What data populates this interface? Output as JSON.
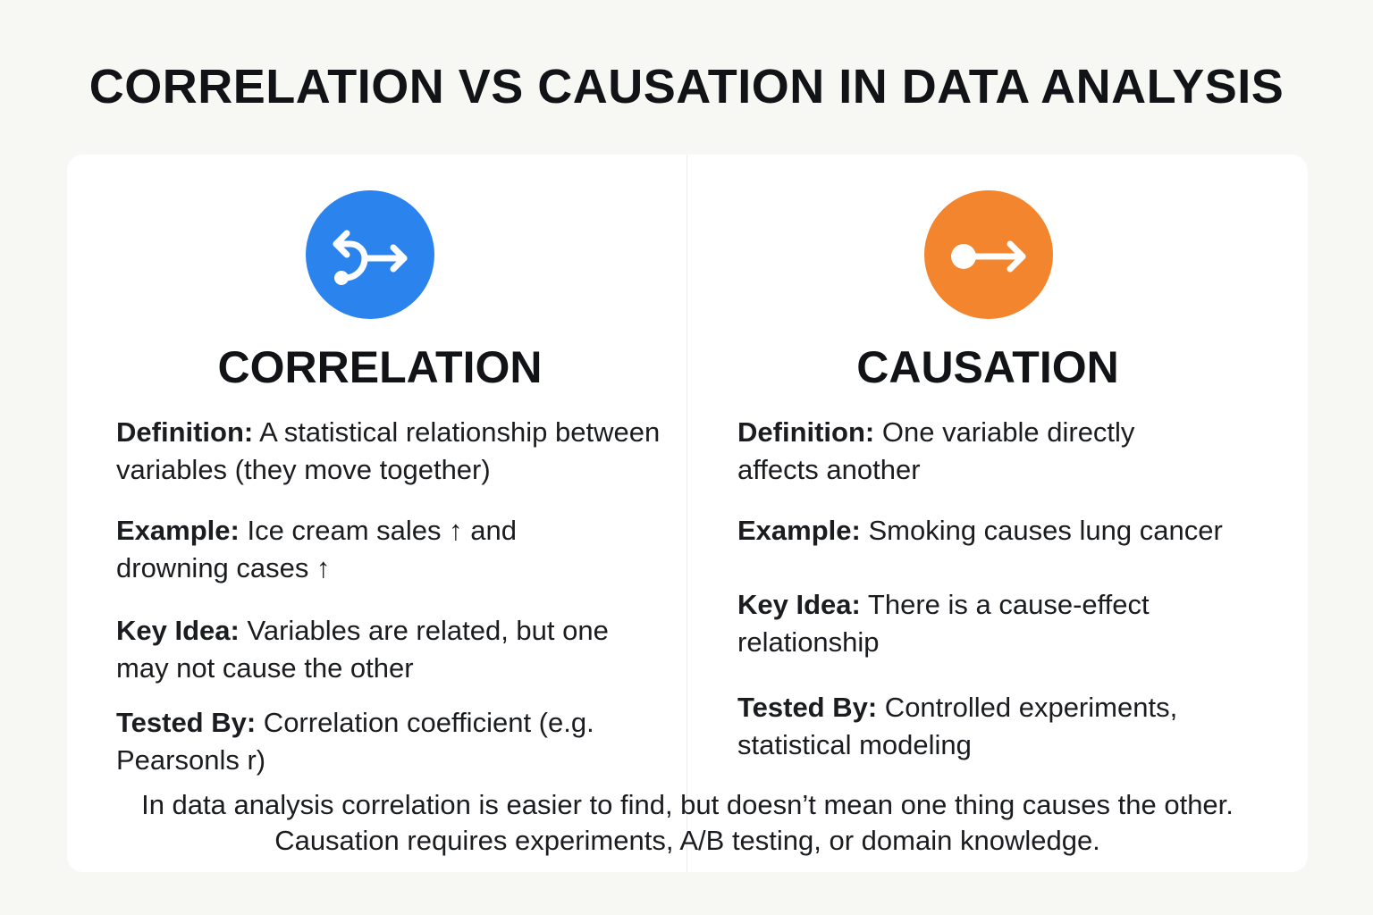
{
  "title": "CORRELATION VS CAUSATION IN DATA ANALYSIS",
  "colors": {
    "background": "#f7f7f4",
    "card": "#ffffff",
    "correlation_accent": "#2b84ee",
    "causation_accent": "#f2852d",
    "text": "#121417"
  },
  "correlation": {
    "icon": "branch-arrow-icon",
    "heading": "CORRELATION",
    "definition_label": "Definition:",
    "definition_text": " A statistical relationship between variables (they move together)",
    "example_label": "Example:",
    "example_text": " Ice cream sales ↑ and drowning cases ↑",
    "key_idea_label": "Key Idea:",
    "key_idea_text": " Variables are related, but one may not cause the other",
    "tested_by_label": "Tested By:",
    "tested_by_text": " Correlation coefficient (e.g. Pearsonls r)"
  },
  "causation": {
    "icon": "dot-arrow-icon",
    "heading": "CAUSATION",
    "definition_label": "Definition:",
    "definition_text": " One variable directly affects another",
    "example_label": "Example:",
    "example_text": " Smoking causes lung cancer",
    "key_idea_label": "Key Idea:",
    "key_idea_text": " There is a cause-effect relationship",
    "tested_by_label": "Tested By:",
    "tested_by_text": " Controlled experiments, statistical modeling"
  },
  "footer": {
    "line1": "In data analysis correlation is easier to find, but doesn’t mean one thing causes the other.",
    "line2": "Causation requires experiments, A/B testing, or domain knowledge."
  }
}
